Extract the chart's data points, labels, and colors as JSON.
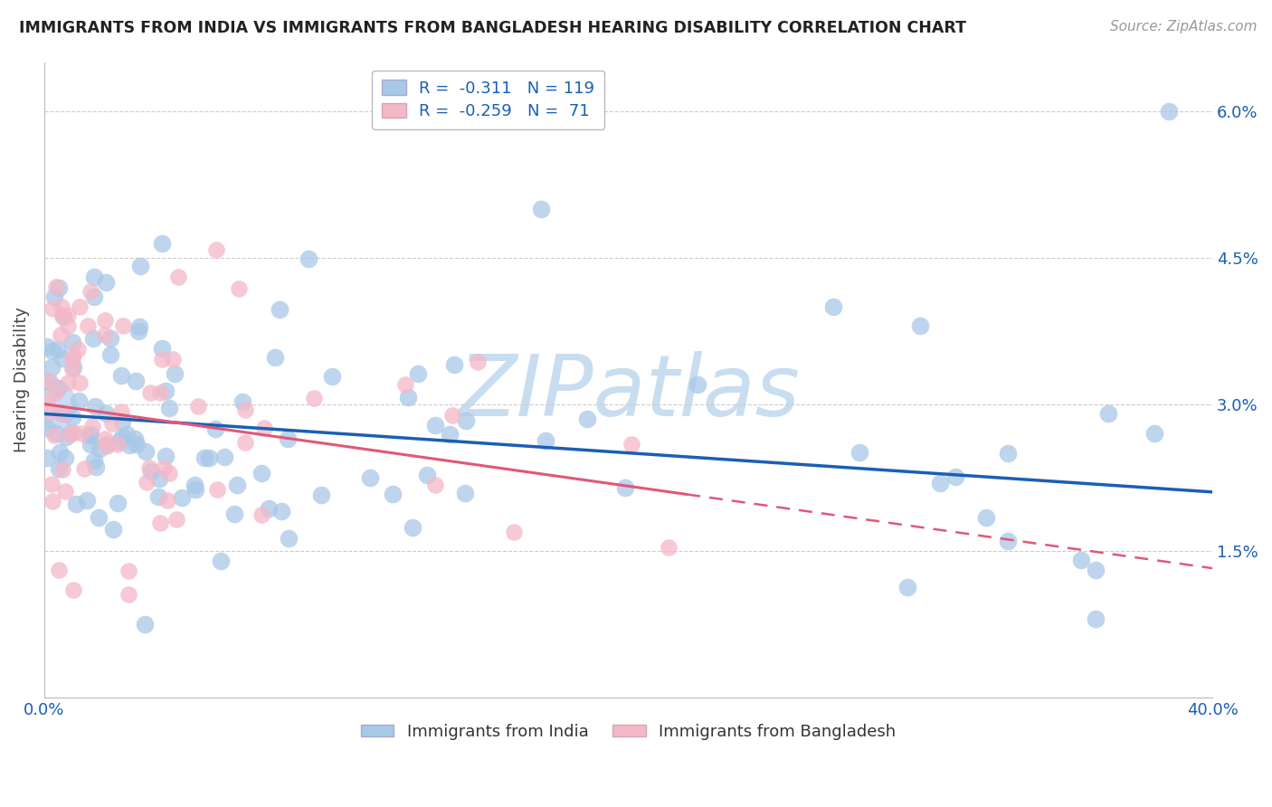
{
  "title": "IMMIGRANTS FROM INDIA VS IMMIGRANTS FROM BANGLADESH HEARING DISABILITY CORRELATION CHART",
  "source": "Source: ZipAtlas.com",
  "ylabel": "Hearing Disability",
  "xlim": [
    0.0,
    0.4
  ],
  "ylim": [
    0.0,
    0.065
  ],
  "xtick_vals": [
    0.0,
    0.05,
    0.1,
    0.15,
    0.2,
    0.25,
    0.3,
    0.35,
    0.4
  ],
  "xticklabels": [
    "0.0%",
    "",
    "",
    "",
    "",
    "",
    "",
    "",
    "40.0%"
  ],
  "ytick_vals": [
    0.0,
    0.015,
    0.03,
    0.045,
    0.06
  ],
  "yticklabels_right": [
    "",
    "1.5%",
    "3.0%",
    "4.5%",
    "6.0%"
  ],
  "india_color": "#a8c8e8",
  "india_edge_color": "#a8c8e8",
  "india_line_color": "#1a5fb4",
  "bangladesh_color": "#f4b8c8",
  "bangladesh_edge_color": "#f4b8c8",
  "bangladesh_line_color": "#e05878",
  "legend_india_label": "R =  -0.311   N = 119",
  "legend_bangladesh_label": "R =  -0.259   N =  71",
  "legend_text_color": "#1a5fb4",
  "watermark_text": "ZIPatlas",
  "watermark_color": "#c8ddf0",
  "bottom_legend_india": "Immigrants from India",
  "bottom_legend_bangladesh": "Immigrants from Bangladesh",
  "india_line_intercept": 0.029,
  "india_line_slope": -0.02,
  "bangladesh_line_intercept": 0.03,
  "bangladesh_line_slope": -0.042,
  "seed": 12345
}
